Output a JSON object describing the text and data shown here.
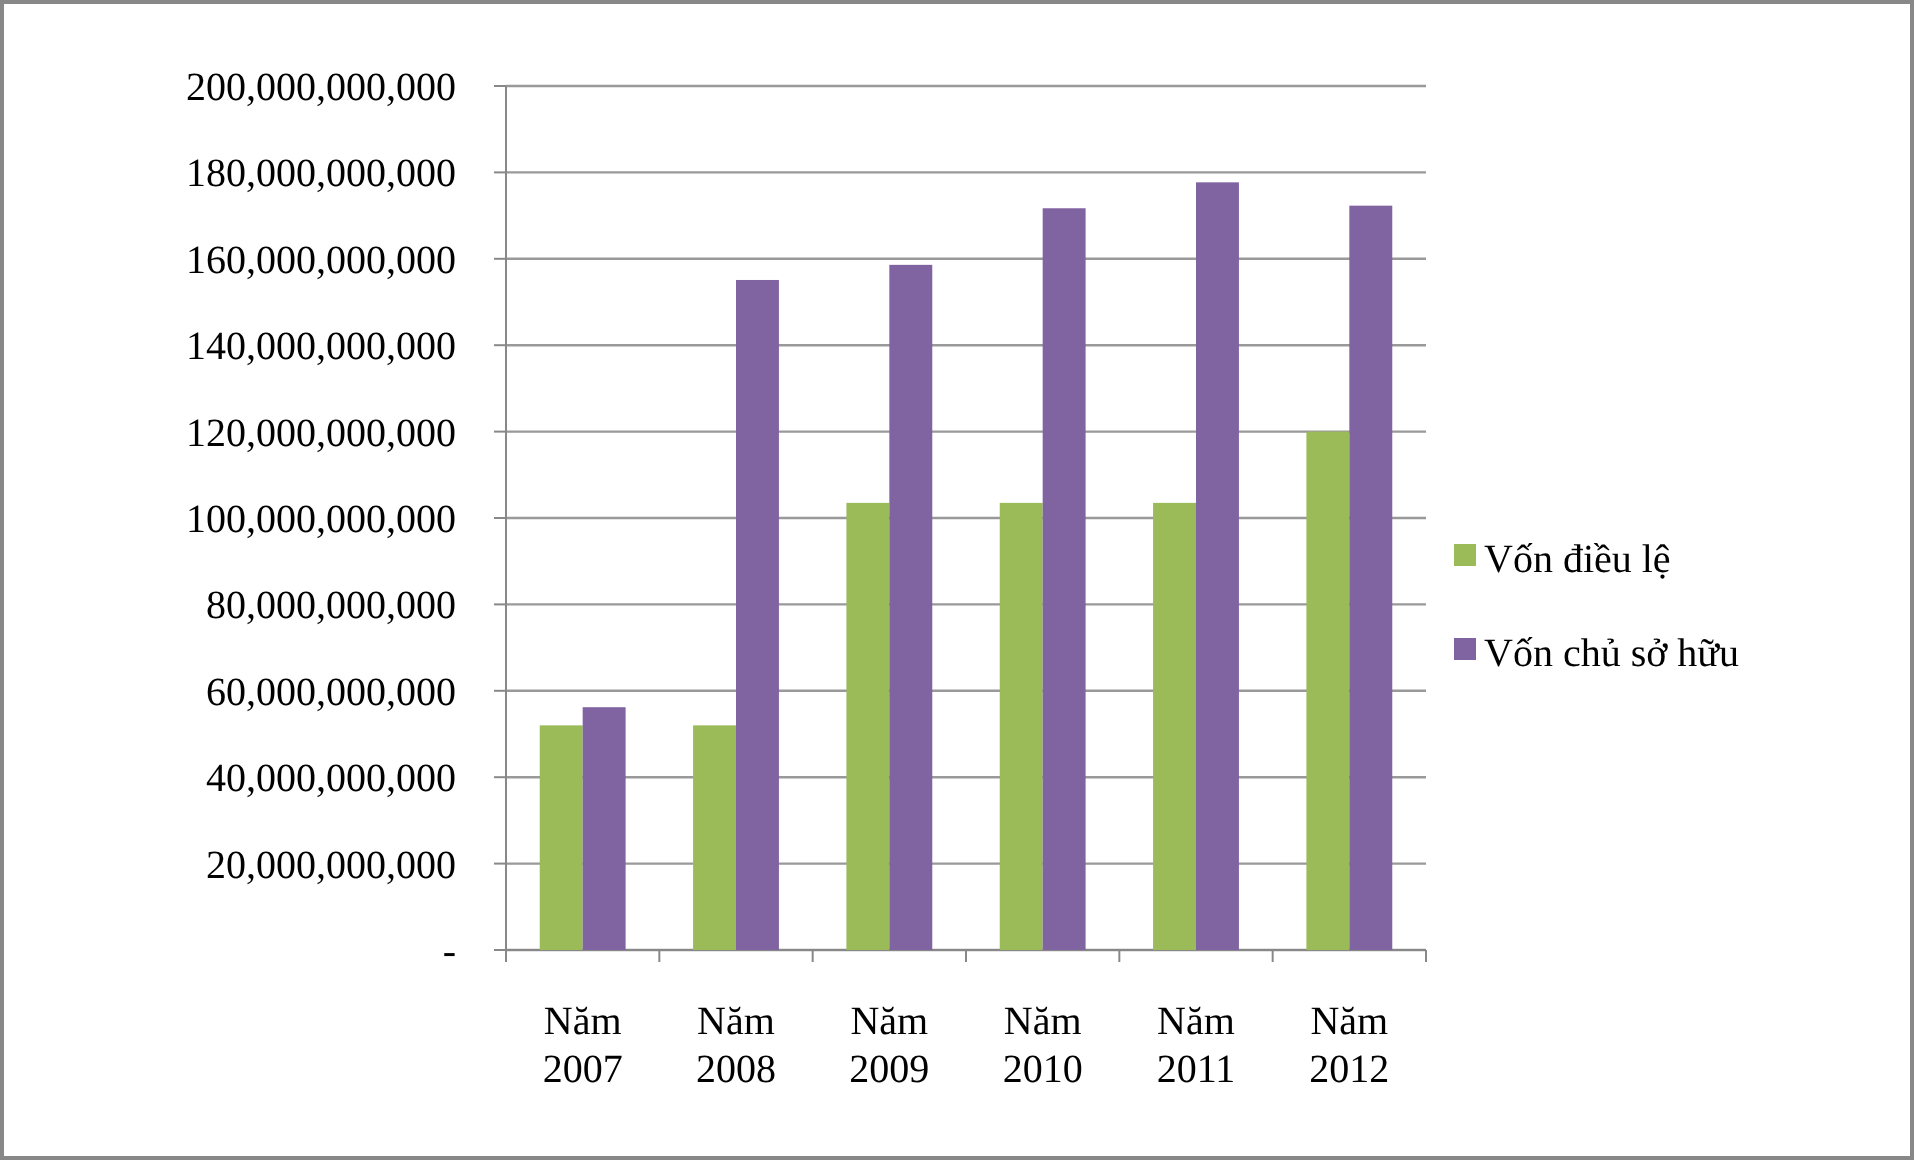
{
  "chart_data": {
    "type": "bar",
    "categories": [
      "Năm 2007",
      "Năm 2008",
      "Năm 2009",
      "Năm 2010",
      "Năm 2011",
      "Năm 2012"
    ],
    "series": [
      {
        "name": "Vốn điều lệ",
        "color": "#9bbb59",
        "values": [
          52000000000,
          52000000000,
          103500000000,
          103500000000,
          103500000000,
          120000000000
        ]
      },
      {
        "name": "Vốn chủ sở hữu",
        "color": "#8064a2",
        "values": [
          56200000000,
          155100000000,
          158600000000,
          171700000000,
          177700000000,
          172300000000
        ]
      }
    ],
    "ylim": [
      0,
      200000000000
    ],
    "yticks": [
      {
        "value": 0,
        "label": "-"
      },
      {
        "value": 20000000000,
        "label": "20,000,000,000"
      },
      {
        "value": 40000000000,
        "label": "40,000,000,000"
      },
      {
        "value": 60000000000,
        "label": "60,000,000,000"
      },
      {
        "value": 80000000000,
        "label": "80,000,000,000"
      },
      {
        "value": 100000000000,
        "label": "100,000,000,000"
      },
      {
        "value": 120000000000,
        "label": "120,000,000,000"
      },
      {
        "value": 140000000000,
        "label": "140,000,000,000"
      },
      {
        "value": 160000000000,
        "label": "160,000,000,000"
      },
      {
        "value": 180000000000,
        "label": "180,000,000,000"
      },
      {
        "value": 200000000000,
        "label": "200,000,000,000"
      }
    ],
    "grid": "y",
    "legend": "right"
  }
}
